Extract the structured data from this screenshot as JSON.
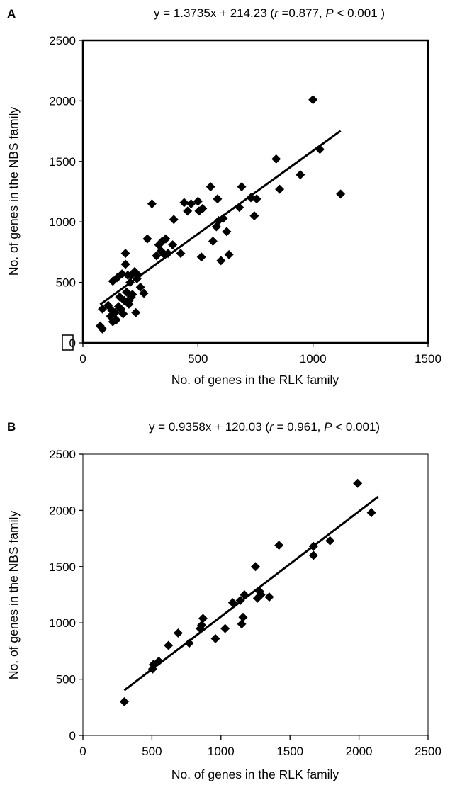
{
  "chart_data": [
    {
      "type": "scatter",
      "panel": "A",
      "title": {
        "lead": "y = 1.3735x + 214.23 (",
        "r_sym": "r",
        "mid": " =0.877, ",
        "p_sym": "P",
        "tail": " < 0.001 )"
      },
      "xlabel": "No. of genes in the RLK family",
      "ylabel": "No. of genes in the NBS family",
      "xlim": [
        0,
        1500
      ],
      "ylim": [
        0,
        2500
      ],
      "xticks": [
        "0",
        "500",
        "1000",
        "1500"
      ],
      "yticks": [
        "0",
        "500",
        "1000",
        "1500",
        "2000",
        "2500"
      ],
      "grid": false,
      "fit": {
        "slope": 1.3735,
        "intercept": 214.23,
        "x_range": [
          75,
          1120
        ]
      },
      "points": [
        [
          75,
          140
        ],
        [
          85,
          115
        ],
        [
          85,
          280
        ],
        [
          110,
          310
        ],
        [
          120,
          220
        ],
        [
          125,
          270
        ],
        [
          130,
          175
        ],
        [
          130,
          510
        ],
        [
          140,
          250
        ],
        [
          145,
          190
        ],
        [
          150,
          540
        ],
        [
          155,
          300
        ],
        [
          160,
          380
        ],
        [
          165,
          280
        ],
        [
          170,
          570
        ],
        [
          175,
          240
        ],
        [
          180,
          350
        ],
        [
          185,
          650
        ],
        [
          185,
          740
        ],
        [
          190,
          420
        ],
        [
          195,
          560
        ],
        [
          200,
          320
        ],
        [
          200,
          350
        ],
        [
          205,
          500
        ],
        [
          210,
          380
        ],
        [
          210,
          560
        ],
        [
          215,
          400
        ],
        [
          225,
          590
        ],
        [
          230,
          250
        ],
        [
          235,
          530
        ],
        [
          240,
          560
        ],
        [
          250,
          460
        ],
        [
          265,
          410
        ],
        [
          280,
          860
        ],
        [
          300,
          1150
        ],
        [
          320,
          720
        ],
        [
          330,
          810
        ],
        [
          340,
          760
        ],
        [
          345,
          840
        ],
        [
          355,
          730
        ],
        [
          360,
          860
        ],
        [
          370,
          740
        ],
        [
          390,
          810
        ],
        [
          395,
          1020
        ],
        [
          425,
          740
        ],
        [
          440,
          1160
        ],
        [
          455,
          1090
        ],
        [
          470,
          1150
        ],
        [
          500,
          1170
        ],
        [
          505,
          1090
        ],
        [
          515,
          710
        ],
        [
          520,
          1110
        ],
        [
          555,
          1290
        ],
        [
          565,
          840
        ],
        [
          580,
          960
        ],
        [
          585,
          1190
        ],
        [
          590,
          1010
        ],
        [
          600,
          680
        ],
        [
          610,
          1030
        ],
        [
          625,
          920
        ],
        [
          635,
          730
        ],
        [
          680,
          1120
        ],
        [
          690,
          1290
        ],
        [
          730,
          1200
        ],
        [
          745,
          1050
        ],
        [
          755,
          1190
        ],
        [
          840,
          1520
        ],
        [
          855,
          1270
        ],
        [
          945,
          1390
        ],
        [
          1000,
          2010
        ],
        [
          1030,
          1600
        ],
        [
          1120,
          1230
        ]
      ]
    },
    {
      "type": "scatter",
      "panel": "B",
      "title": {
        "lead": "y = 0.9358x + 120.03 (",
        "r_sym": "r",
        "mid": " = 0.961, ",
        "p_sym": "P",
        "tail": " < 0.001)"
      },
      "xlabel": "No. of genes in the RLK family",
      "ylabel": "No. of genes in the NBS family",
      "xlim": [
        0,
        2500
      ],
      "ylim": [
        0,
        2500
      ],
      "xticks": [
        "0",
        "500",
        "1000",
        "1500",
        "2000",
        "2500"
      ],
      "yticks": [
        "0",
        "500",
        "1000",
        "1500",
        "2000",
        "2500"
      ],
      "grid": false,
      "fit": {
        "slope": 0.9358,
        "intercept": 120.03,
        "x_range": [
          300,
          2140
        ]
      },
      "points": [
        [
          300,
          300
        ],
        [
          505,
          590
        ],
        [
          510,
          630
        ],
        [
          550,
          660
        ],
        [
          620,
          800
        ],
        [
          690,
          910
        ],
        [
          770,
          820
        ],
        [
          850,
          950
        ],
        [
          860,
          980
        ],
        [
          870,
          1040
        ],
        [
          960,
          860
        ],
        [
          1030,
          950
        ],
        [
          1085,
          1180
        ],
        [
          1140,
          1200
        ],
        [
          1150,
          990
        ],
        [
          1160,
          1050
        ],
        [
          1170,
          1250
        ],
        [
          1250,
          1500
        ],
        [
          1265,
          1220
        ],
        [
          1280,
          1280
        ],
        [
          1290,
          1250
        ],
        [
          1350,
          1230
        ],
        [
          1420,
          1690
        ],
        [
          1670,
          1680
        ],
        [
          1670,
          1600
        ],
        [
          1790,
          1730
        ],
        [
          1990,
          2240
        ],
        [
          2090,
          1980
        ]
      ]
    }
  ]
}
